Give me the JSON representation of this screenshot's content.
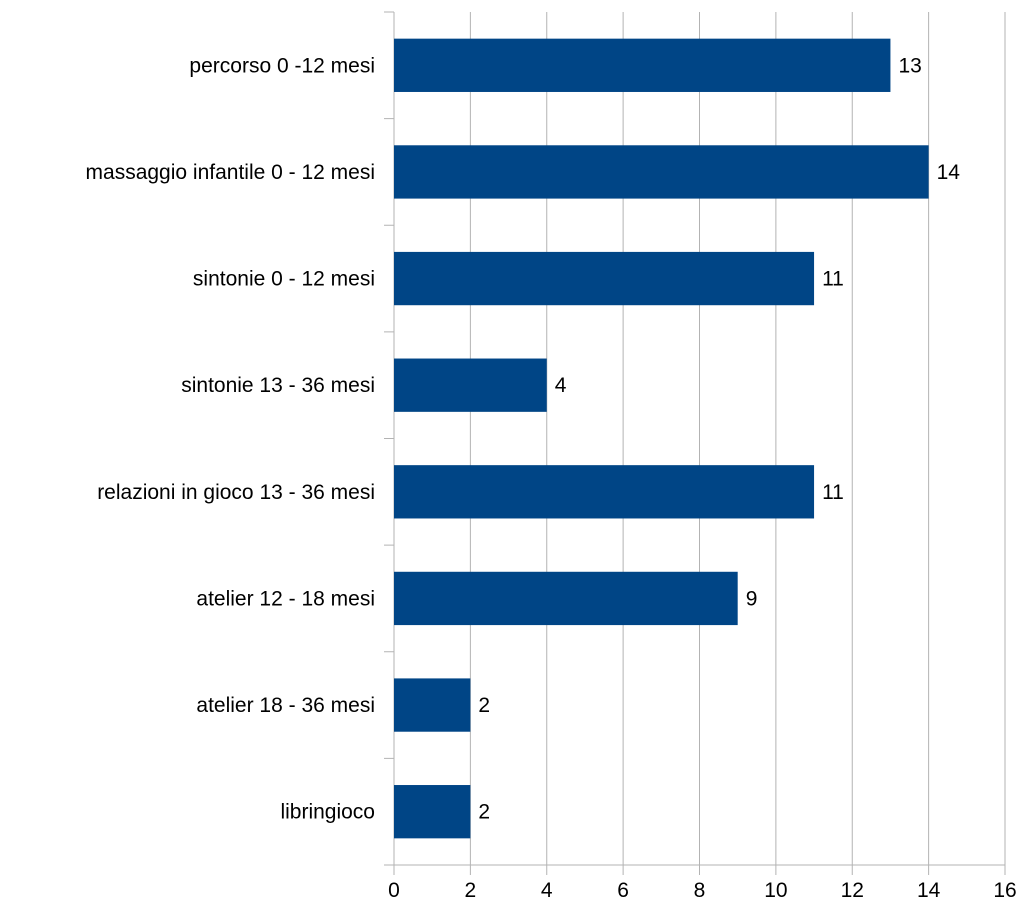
{
  "chart_data": {
    "type": "bar",
    "orientation": "horizontal",
    "categories": [
      "percorso 0 -12 mesi",
      "massaggio infantile 0 - 12 mesi",
      "sintonie 0 - 12 mesi",
      "sintonie 13 - 36 mesi",
      "relazioni in gioco 13 - 36 mesi",
      "atelier 12 - 18 mesi",
      "atelier 18 - 36 mesi",
      "libringioco"
    ],
    "values": [
      13,
      14,
      11,
      4,
      11,
      9,
      2,
      2
    ],
    "data_labels": [
      "13",
      "14",
      "11",
      "4",
      "11",
      "9",
      "2",
      "2"
    ],
    "title": "",
    "xlabel": "",
    "ylabel": "",
    "xlim": [
      0,
      16
    ],
    "x_ticks": [
      "0",
      "2",
      "4",
      "6",
      "8",
      "10",
      "12",
      "14",
      "16"
    ],
    "grid": "vertical",
    "legend": "none",
    "colors": {
      "bar": "#004586",
      "grid": "#b3b3b3",
      "axis": "#b3b3b3",
      "text": "#000000"
    }
  }
}
